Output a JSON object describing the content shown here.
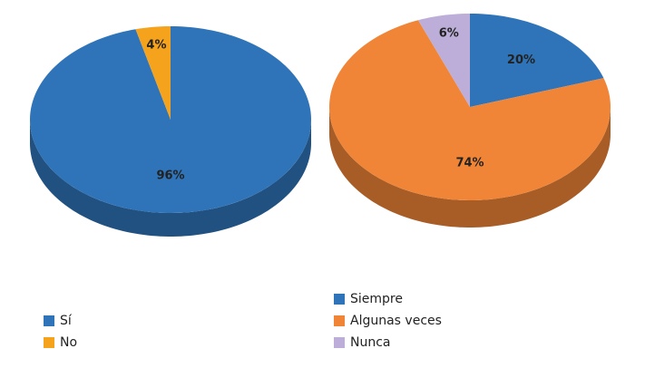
{
  "chart_data": [
    {
      "type": "pie",
      "categories": [
        "Sí",
        "No"
      ],
      "values": [
        96,
        4
      ],
      "value_labels": [
        "96%",
        "4%"
      ],
      "colors": [
        "#2f74b8",
        "#f5a21c"
      ],
      "legend": "bottom-left"
    },
    {
      "type": "pie",
      "categories": [
        "Siempre",
        "Algunas veces",
        "Nunca"
      ],
      "values": [
        20,
        74,
        6
      ],
      "value_labels": [
        "20%",
        "74%",
        "6%"
      ],
      "colors": [
        "#2f74b8",
        "#f08537",
        "#bcaed8"
      ],
      "legend": "bottom-left"
    }
  ]
}
